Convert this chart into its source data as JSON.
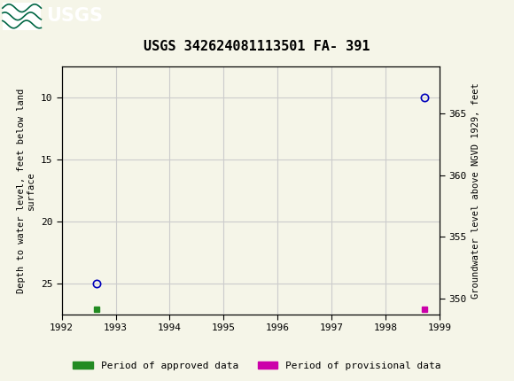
{
  "title": "USGS 342624081113501 FA- 391",
  "header_bg_color": "#006644",
  "header_text_color": "#ffffff",
  "y_left_label": "Depth to water level, feet below land\nsurface",
  "y_right_label": "Groundwater level above NGVD 1929, feet",
  "xlim": [
    1992,
    1999
  ],
  "ylim_left": [
    27.5,
    7.5
  ],
  "ylim_right": [
    348.75,
    368.75
  ],
  "xticks": [
    1992,
    1993,
    1994,
    1995,
    1996,
    1997,
    1998,
    1999
  ],
  "yticks_left": [
    10,
    15,
    20,
    25
  ],
  "yticks_right": [
    350,
    355,
    360,
    365
  ],
  "circle_points_x": [
    1992.65,
    1998.72
  ],
  "circle_points_y": [
    25.0,
    10.0
  ],
  "circle_color": "#0000bb",
  "green_bar_x": 1992.65,
  "green_bar_color": "#228B22",
  "magenta_bar_x": 1998.72,
  "magenta_bar_color": "#cc00aa",
  "legend_approved_label": "Period of approved data",
  "legend_provisional_label": "Period of provisional data",
  "bg_color": "#f5f5e8",
  "plot_bg_color": "#f5f5e8",
  "grid_color": "#cccccc",
  "font_family": "monospace"
}
